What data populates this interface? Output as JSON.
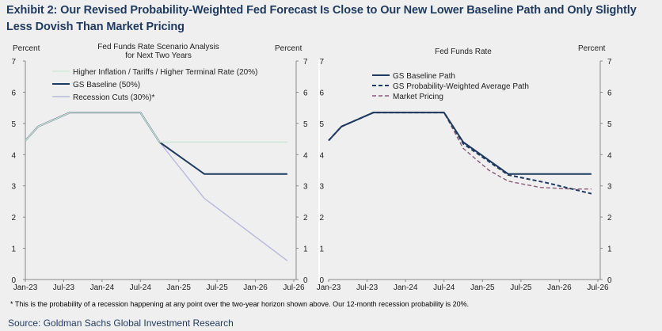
{
  "title": "Exhibit 2: Our Revised Probability-Weighted Fed Forecast Is Close to Our New Lower Baseline Path and Only Slightly Less Dovish Than Market Pricing",
  "footnote": "* This is the probability of a recession happening at any point over the two-year horizon shown above. Our 12-month recession probability is 20%.",
  "source": "Source: Goldman Sachs Global Investment Research",
  "colors": {
    "navy": "#1f3a5f",
    "light_green": "#cfe6d9",
    "lavender": "#b7b9dc",
    "mauve": "#8a5a7a"
  },
  "chart_data": [
    {
      "type": "line",
      "title": "Fed Funds Rate Scenario Analysis for Next Two Years",
      "title_lines": [
        "Fed Funds Rate Scenario Analysis",
        "for Next Two Years"
      ],
      "ylabel_left": "Percent",
      "ylabel_right": "Percent",
      "ylim": [
        0,
        7
      ],
      "yticks": [
        "0",
        "1",
        "2",
        "3",
        "4",
        "5",
        "6",
        "7"
      ],
      "xlim": [
        0,
        42
      ],
      "xticks": [
        {
          "x": 0,
          "label": "Jan-23"
        },
        {
          "x": 6,
          "label": "Jul-23"
        },
        {
          "x": 12,
          "label": "Jan-24"
        },
        {
          "x": 18,
          "label": "Jul-24"
        },
        {
          "x": 24,
          "label": "Jan-25"
        },
        {
          "x": 30,
          "label": "Jul-25"
        },
        {
          "x": 36,
          "label": "Jan-26"
        },
        {
          "x": 42,
          "label": "Jul-26"
        }
      ],
      "series": [
        {
          "name": "Higher Inflation / Tariffs / Higher Terminal Rate (20%)",
          "color": "#cfe6d9",
          "style": "solid",
          "points": [
            [
              0,
              4.45
            ],
            [
              2,
              4.9
            ],
            [
              7,
              5.35
            ],
            [
              18,
              5.35
            ],
            [
              21,
              4.4
            ],
            [
              41,
              4.4
            ]
          ]
        },
        {
          "name": "GS Baseline (50%)",
          "color": "#1f3a5f",
          "style": "solid",
          "points": [
            [
              0,
              4.45
            ],
            [
              2,
              4.9
            ],
            [
              7,
              5.35
            ],
            [
              18,
              5.35
            ],
            [
              21,
              4.4
            ],
            [
              28,
              3.38
            ],
            [
              41,
              3.38
            ]
          ]
        },
        {
          "name": "Recession Cuts (30%)*",
          "color": "#b7b9dc",
          "style": "solid",
          "points": [
            [
              0,
              4.45
            ],
            [
              2,
              4.9
            ],
            [
              7,
              5.35
            ],
            [
              18,
              5.35
            ],
            [
              21,
              4.4
            ],
            [
              28,
              2.6
            ],
            [
              41,
              0.6
            ]
          ]
        }
      ]
    },
    {
      "type": "line",
      "title": "Fed Funds Rate",
      "title_lines": [
        "Fed Funds Rate"
      ],
      "ylabel_left": "",
      "ylabel_right": "Percent",
      "ylim": [
        0,
        7
      ],
      "yticks": [
        "0",
        "1",
        "2",
        "3",
        "4",
        "5",
        "6",
        "7"
      ],
      "xlim": [
        0,
        42
      ],
      "xticks": [
        {
          "x": 0,
          "label": "Jan-23"
        },
        {
          "x": 6,
          "label": "Jul-23"
        },
        {
          "x": 12,
          "label": "Jan-24"
        },
        {
          "x": 18,
          "label": "Jul-24"
        },
        {
          "x": 24,
          "label": "Jan-25"
        },
        {
          "x": 30,
          "label": "Jul-25"
        },
        {
          "x": 36,
          "label": "Jan-26"
        },
        {
          "x": 42,
          "label": "Jul-26"
        }
      ],
      "series": [
        {
          "name": "GS Baseline Path",
          "color": "#1f3a5f",
          "style": "solid",
          "points": [
            [
              0,
              4.45
            ],
            [
              2,
              4.9
            ],
            [
              7,
              5.35
            ],
            [
              18,
              5.35
            ],
            [
              21,
              4.4
            ],
            [
              28,
              3.38
            ],
            [
              41,
              3.38
            ]
          ]
        },
        {
          "name": "GS Probability-Weighted Average Path",
          "color": "#1f3a5f",
          "style": "dashed",
          "points": [
            [
              0,
              4.45
            ],
            [
              2,
              4.9
            ],
            [
              7,
              5.35
            ],
            [
              18,
              5.35
            ],
            [
              21,
              4.35
            ],
            [
              28,
              3.35
            ],
            [
              34,
              3.1
            ],
            [
              41,
              2.75
            ]
          ]
        },
        {
          "name": "Market Pricing",
          "color": "#8a5a7a",
          "style": "dashed",
          "points": [
            [
              0,
              4.45
            ],
            [
              2,
              4.9
            ],
            [
              7,
              5.35
            ],
            [
              18,
              5.35
            ],
            [
              21,
              4.2
            ],
            [
              25,
              3.5
            ],
            [
              28,
              3.15
            ],
            [
              33,
              2.95
            ],
            [
              38,
              2.9
            ],
            [
              41,
              2.9
            ]
          ]
        }
      ]
    }
  ]
}
